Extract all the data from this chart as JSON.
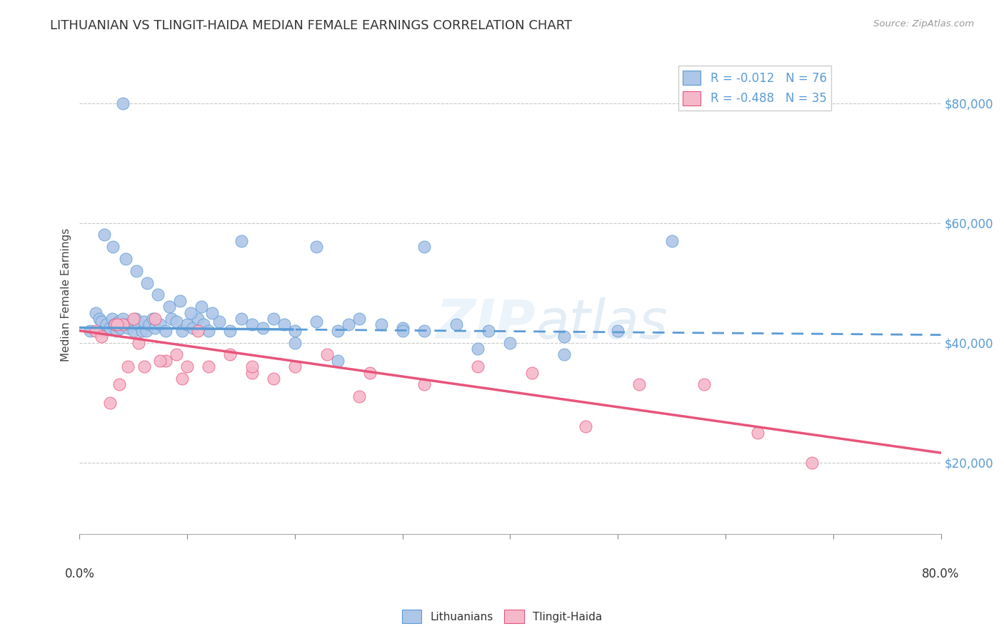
{
  "title": "LITHUANIAN VS TLINGIT-HAIDA MEDIAN FEMALE EARNINGS CORRELATION CHART",
  "source": "Source: ZipAtlas.com",
  "ylabel": "Median Female Earnings",
  "y_ticks": [
    20000,
    40000,
    60000,
    80000
  ],
  "y_tick_labels": [
    "$20,000",
    "$40,000",
    "$60,000",
    "$80,000"
  ],
  "xlim": [
    0.0,
    80.0
  ],
  "ylim": [
    8000,
    88000
  ],
  "x_minor_ticks": [
    0,
    10,
    20,
    30,
    40,
    50,
    60,
    70,
    80
  ],
  "legend_entry1": "R = -0.012   N = 76",
  "legend_entry2": "R = -0.488   N = 35",
  "series1_color": "#aec6e8",
  "series2_color": "#f5b8cb",
  "trend1_color": "#5b9bd5",
  "trend2_color": "#e8547a",
  "background_color": "#ffffff",
  "grid_color": "#c8c8c8",
  "title_fontsize": 13,
  "label_fontsize": 11,
  "tick_fontsize": 12,
  "legend_fontsize": 12,
  "trend1_intercept": 42500,
  "trend1_slope": -15,
  "trend2_intercept": 42000,
  "trend2_slope": -255,
  "series1_x": [
    1.0,
    1.5,
    1.8,
    2.0,
    2.2,
    2.5,
    2.8,
    3.0,
    3.2,
    3.4,
    3.6,
    3.8,
    4.0,
    4.2,
    4.5,
    4.8,
    5.0,
    5.2,
    5.5,
    5.8,
    6.0,
    6.2,
    6.5,
    6.8,
    7.0,
    7.5,
    8.0,
    8.5,
    9.0,
    9.5,
    10.0,
    10.5,
    11.0,
    11.5,
    12.0,
    13.0,
    14.0,
    15.0,
    16.0,
    17.0,
    18.0,
    19.0,
    20.0,
    22.0,
    24.0,
    26.0,
    28.0,
    30.0,
    32.0,
    35.0,
    38.0,
    40.0,
    45.0,
    50.0,
    2.3,
    3.1,
    4.3,
    5.3,
    6.3,
    7.3,
    8.3,
    9.3,
    10.3,
    11.3,
    12.3,
    15.0,
    20.0,
    25.0,
    30.0,
    37.0,
    45.0,
    55.0,
    4.0,
    24.0,
    22.0,
    32.0
  ],
  "series1_y": [
    42000,
    45000,
    44000,
    43500,
    42000,
    43000,
    42500,
    44000,
    43000,
    42000,
    43500,
    42500,
    44000,
    43000,
    42500,
    43000,
    42000,
    44000,
    43000,
    42000,
    43500,
    42000,
    43000,
    44000,
    42500,
    43000,
    42000,
    44000,
    43500,
    42000,
    43000,
    42500,
    44000,
    43000,
    42000,
    43500,
    42000,
    44000,
    43000,
    42500,
    44000,
    43000,
    42000,
    43500,
    42000,
    44000,
    43000,
    42500,
    42000,
    43000,
    42000,
    40000,
    41000,
    42000,
    58000,
    56000,
    54000,
    52000,
    50000,
    48000,
    46000,
    47000,
    45000,
    46000,
    45000,
    57000,
    40000,
    43000,
    42000,
    39000,
    38000,
    57000,
    80000,
    37000,
    56000,
    56000
  ],
  "series2_x": [
    1.5,
    2.0,
    2.8,
    3.3,
    3.7,
    4.0,
    4.5,
    5.0,
    6.0,
    7.0,
    8.0,
    9.0,
    10.0,
    11.0,
    12.0,
    14.0,
    16.0,
    18.0,
    20.0,
    23.0,
    27.0,
    32.0,
    37.0,
    42.0,
    47.0,
    52.0,
    58.0,
    63.0,
    68.0,
    3.5,
    5.5,
    7.5,
    9.5,
    16.0,
    26.0
  ],
  "series2_y": [
    42000,
    41000,
    30000,
    43000,
    33000,
    43000,
    36000,
    44000,
    36000,
    44000,
    37000,
    38000,
    36000,
    42000,
    36000,
    38000,
    35000,
    34000,
    36000,
    38000,
    35000,
    33000,
    36000,
    35000,
    26000,
    33000,
    33000,
    25000,
    20000,
    43000,
    40000,
    37000,
    34000,
    36000,
    31000
  ]
}
